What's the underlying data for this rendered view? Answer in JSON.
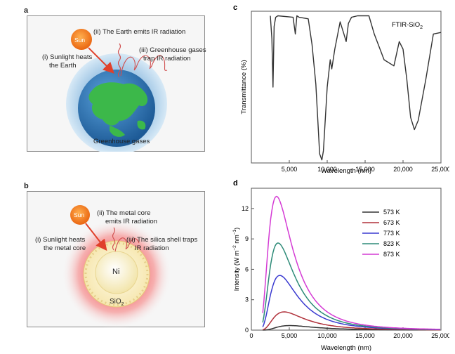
{
  "panel_a": {
    "letter": "a",
    "sun_label": "Sun",
    "step1_line1": "(i) Sunlight heats",
    "step1_line2": "the Earth",
    "step2": "(ii) The Earth emits IR radiation",
    "step3_line1": "(iii) Greenhouse gases",
    "step3_line2": "trap IR radiation",
    "bottom_label": "Greenhouse gases"
  },
  "panel_b": {
    "letter": "b",
    "sun_label": "Sun",
    "step1_line1": "(i)  Sunlight heats",
    "step1_line2": "the metal core",
    "step2_line1": "(ii) The metal core",
    "step2_line2": "emits IR radiation",
    "step3_line1": "(iii) The silica shell traps",
    "step3_line2": "IR radiation",
    "core_label": "Ni",
    "shell_label": "SiO",
    "shell_subscript": "2"
  },
  "chart_data": [
    {
      "panel": "c",
      "type": "line",
      "title": "",
      "annotation": "FTIR-SiO",
      "annotation_subscript": "2",
      "xlabel": "Wavelength (nm)",
      "ylabel": "Transmittance (%)",
      "xlim": [
        0,
        25000
      ],
      "ylim": [
        0,
        100
      ],
      "xticks": [
        5000,
        10000,
        15000,
        20000,
        25000
      ],
      "xtick_labels": [
        "5,000",
        "10,000",
        "15,000",
        "20,000",
        "25,000"
      ],
      "series": [
        {
          "name": "FTIR-SiO2",
          "color": "#333333",
          "x": [
            2500,
            2700,
            2850,
            3000,
            3200,
            3500,
            5500,
            5800,
            6000,
            6300,
            7500,
            8000,
            8500,
            8800,
            9000,
            9300,
            9500,
            10000,
            10400,
            10600,
            11000,
            11700,
            12200,
            12500,
            12800,
            13200,
            14000,
            15500,
            16200,
            17500,
            18800,
            19500,
            20000,
            20500,
            21000,
            21500,
            22000,
            23000,
            24000,
            25000
          ],
          "y": [
            97,
            82,
            50,
            90,
            96,
            97,
            96,
            85,
            97,
            96,
            95,
            78,
            52,
            25,
            6,
            2,
            8,
            50,
            68,
            62,
            75,
            93,
            85,
            80,
            92,
            96,
            97,
            97,
            85,
            68,
            64,
            80,
            75,
            55,
            30,
            22,
            28,
            55,
            85,
            86
          ]
        }
      ]
    },
    {
      "panel": "d",
      "type": "line",
      "title": "",
      "xlabel": "Wavelength (nm)",
      "ylabel": "Intensity (W m",
      "ylabel_sup1": "−2",
      "ylabel_mid": " nm",
      "ylabel_sup2": "−1",
      "ylabel_end": ")",
      "xlim": [
        0,
        25000
      ],
      "ylim": [
        0,
        14
      ],
      "xticks": [
        0,
        5000,
        10000,
        15000,
        20000,
        25000
      ],
      "xtick_labels": [
        "0",
        "5,000",
        "10,000",
        "15,000",
        "20,000",
        "25,000"
      ],
      "yticks": [
        0,
        3,
        6,
        9,
        12
      ],
      "ytick_labels": [
        "0",
        "3",
        "6",
        "9",
        "12"
      ],
      "legend_position": "top-right",
      "series": [
        {
          "name": "573 K",
          "color": "#333333",
          "temperature_K": 573,
          "peak_wavelength_nm": 5050,
          "peak_intensity": 0.45
        },
        {
          "name": "673 K",
          "color": "#b0303a",
          "temperature_K": 673,
          "peak_wavelength_nm": 4300,
          "peak_intensity": 1.8
        },
        {
          "name": "773 K",
          "color": "#3a3ad0",
          "temperature_K": 773,
          "peak_wavelength_nm": 3750,
          "peak_intensity": 5.4
        },
        {
          "name": "823 K",
          "color": "#2e8b78",
          "temperature_K": 823,
          "peak_wavelength_nm": 3520,
          "peak_intensity": 8.6
        },
        {
          "name": "873 K",
          "color": "#d43ad4",
          "temperature_K": 873,
          "peak_wavelength_nm": 3320,
          "peak_intensity": 13.2
        }
      ]
    }
  ],
  "colors": {
    "sun": "#f07a1a",
    "arrow": "#e0402a",
    "ir": "#d05050",
    "earth_halo": "#a9cce8",
    "earth_ocean": "#2e74b8",
    "earth_land": "#3cb84a",
    "glow": "#f2a0a0",
    "shell": "#f4e09a"
  }
}
